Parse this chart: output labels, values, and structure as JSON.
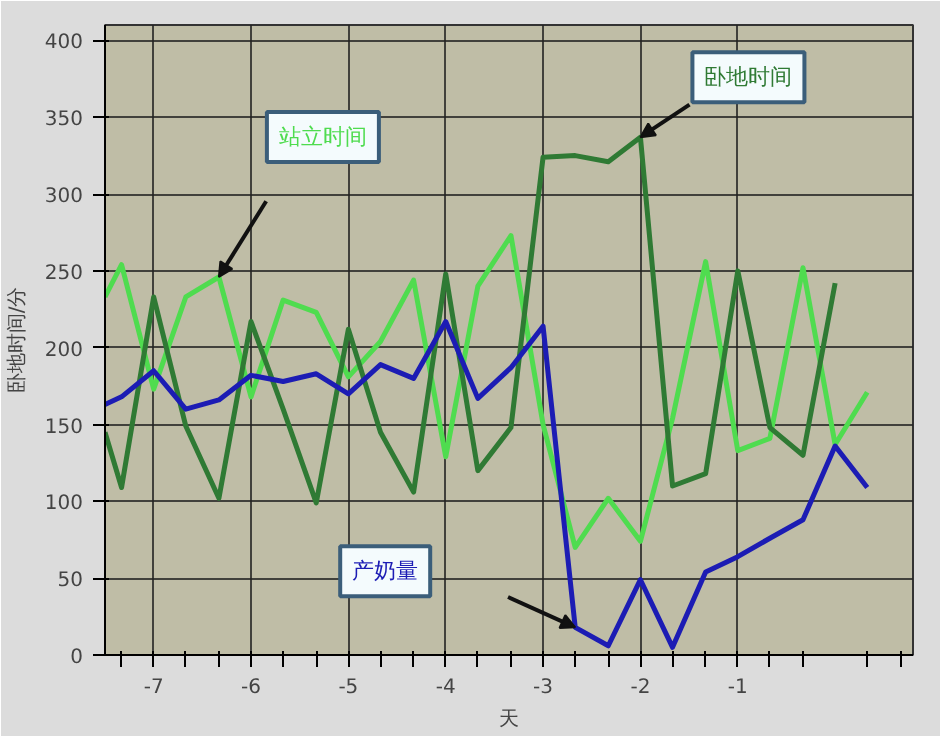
{
  "chart_data": {
    "type": "line",
    "xlabel": "天",
    "ylabel": "卧地时间/分",
    "x": [
      -7.5,
      -7.33,
      -7.0,
      -6.67,
      -6.33,
      -6.0,
      -5.67,
      -5.33,
      -5.0,
      -4.67,
      -4.33,
      -4.0,
      -3.67,
      -3.33,
      -3.0,
      -2.67,
      -2.33,
      -2.0,
      -1.67,
      -1.33,
      -1.0,
      -0.67,
      -0.33,
      0.0,
      0.33
    ],
    "series": [
      {
        "name": "站立时间",
        "color": "#4fdc4f",
        "values": [
          233,
          254,
          173,
          233,
          246,
          168,
          231,
          223,
          181,
          204,
          244,
          129,
          240,
          273,
          150,
          70,
          102,
          74,
          154,
          256,
          133,
          141,
          252,
          137,
          171
        ]
      },
      {
        "name": "卧地时间",
        "color": "#2f7a34",
        "x": [
          -7.5,
          -7.33,
          -7.0,
          -6.67,
          -6.33,
          -6.0,
          -5.67,
          -5.33,
          -5.0,
          -4.67,
          -4.33,
          -4.0,
          -3.67,
          -3.33,
          -3.0,
          -2.67,
          -2.33,
          -2.0,
          -1.67,
          -1.33,
          -1.0,
          -0.67,
          -0.33,
          0.0
        ],
        "values": [
          145,
          109,
          233,
          149,
          102,
          217,
          160,
          99,
          212,
          145,
          106,
          248,
          120,
          148,
          324,
          325,
          321,
          337,
          110,
          118,
          250,
          148,
          130,
          242
        ]
      },
      {
        "name": "产奶量",
        "color": "#1c1cb4",
        "values": [
          163,
          168,
          185,
          160,
          166,
          182,
          178,
          183,
          170,
          189,
          180,
          217,
          167,
          187,
          214,
          18,
          6,
          49,
          5,
          54,
          64,
          76,
          88,
          136,
          109
        ]
      }
    ],
    "xlim": [
      -7.5,
      0.8
    ],
    "ylim": [
      0,
      410
    ],
    "xticks": [
      {
        "value": -7.33,
        "label": null
      },
      -7,
      {
        "value": -6.67,
        "label": null
      },
      {
        "value": -6.33,
        "label": null
      },
      -6,
      {
        "value": -5.67,
        "label": null
      },
      {
        "value": -5.33,
        "label": null
      },
      -5,
      {
        "value": -4.67,
        "label": null
      },
      {
        "value": -4.33,
        "label": null
      },
      -4,
      {
        "value": -3.67,
        "label": null
      },
      {
        "value": -3.33,
        "label": null
      },
      -3,
      {
        "value": -2.67,
        "label": null
      },
      {
        "value": -2.33,
        "label": null
      },
      -2,
      {
        "value": -1.67,
        "label": null
      },
      {
        "value": -1.33,
        "label": null
      },
      -1,
      {
        "value": -0.67,
        "label": null
      },
      {
        "value": -0.33,
        "label": null
      },
      {
        "value": 0.33,
        "label": null
      },
      {
        "value": 0.67,
        "label": null
      }
    ],
    "yticks": [
      0,
      50,
      100,
      150,
      200,
      250,
      300,
      350,
      400
    ],
    "grid": true,
    "legend": false,
    "marker": "none",
    "line_style": "solid"
  }
}
